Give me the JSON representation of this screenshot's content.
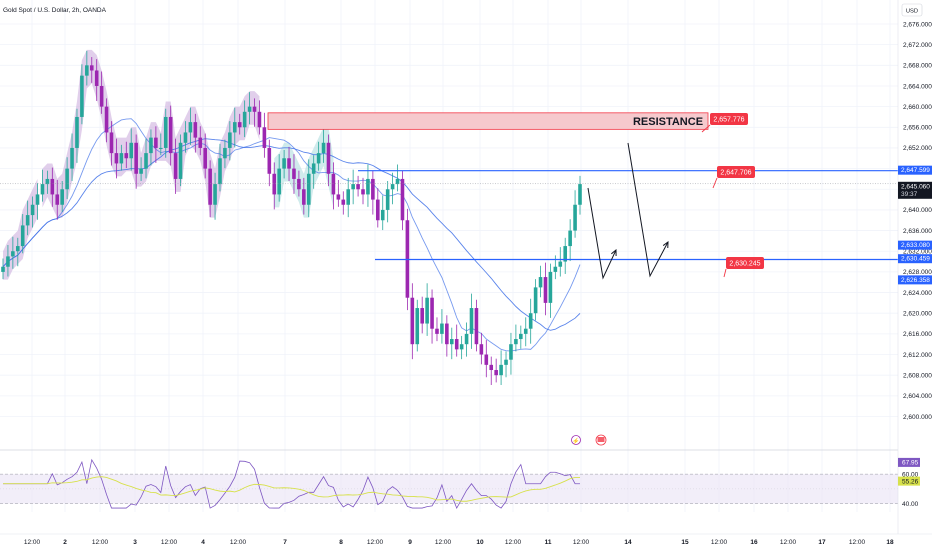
{
  "header": {
    "symbol_title": "Gold Spot / U.S. Dollar, 2h, OANDA",
    "currency_label": "USD"
  },
  "chart_data": {
    "type": "candlestick",
    "title": "Gold Spot / U.S. Dollar, 2h, OANDA",
    "y_axis": {
      "unit": "USD",
      "ylim": [
        2597.5,
        2680.5
      ],
      "ticks": [
        "2,600.000",
        "2,604.000",
        "2,608.000",
        "2,612.000",
        "2,616.000",
        "2,620.000",
        "2,624.000",
        "2,628.000",
        "2,632.000",
        "2,636.000",
        "2,640.000",
        "2,644.000",
        "2,648.000",
        "2,652.000",
        "2,656.000",
        "2,660.000",
        "2,664.000",
        "2,668.000",
        "2,672.000",
        "2,676.000"
      ]
    },
    "x_axis": {
      "ticks": [
        "12:00",
        "2",
        "12:00",
        "3",
        "12:00",
        "4",
        "12:00",
        "7",
        "8",
        "12:00",
        "9",
        "12:00",
        "10",
        "12:00",
        "11",
        "12:00",
        "14",
        "15",
        "12:00",
        "16",
        "12:00",
        "17",
        "12:00",
        "18"
      ]
    },
    "price_labels": [
      {
        "value": "2,647.599",
        "color": "#2962ff"
      },
      {
        "value": "2,645.060",
        "sub": "39:37",
        "color": "#131722"
      },
      {
        "value": "2,633.080",
        "color": "#2962ff"
      },
      {
        "value": "2,630.459",
        "color": "#2962ff"
      },
      {
        "value": "2,626.358",
        "color": "#2962ff"
      },
      {
        "value": "67.95",
        "color": "#7e57c2"
      },
      {
        "value": "60.00",
        "color": "#131722"
      },
      {
        "value": "55.26",
        "color": "#d7e14b"
      },
      {
        "value": "40.00",
        "color": "#131722"
      }
    ],
    "annotations": [
      {
        "text": "RESISTANCE",
        "type": "zone",
        "from": 2655.6,
        "to": 2658.8
      },
      {
        "text": "2,657.776",
        "type": "callout",
        "color": "#f23645"
      },
      {
        "text": "2,647.706",
        "type": "callout",
        "color": "#f23645"
      },
      {
        "text": "2,630.245",
        "type": "callout",
        "color": "#f23645"
      }
    ],
    "levels": [
      {
        "name": "upper line",
        "value": 2647.6,
        "color": "#2962ff"
      },
      {
        "name": "lower line",
        "value": 2630.4,
        "color": "#2962ff"
      }
    ],
    "series": [
      {
        "values": [
          2629,
          2631,
          2632,
          2633,
          2637,
          2639,
          2641,
          2643,
          2645,
          2646,
          2643,
          2641,
          2644,
          2648,
          2652,
          2658,
          2666,
          2668,
          2667,
          2664,
          2660,
          2655,
          2651,
          2649,
          2651,
          2650,
          2653,
          2647,
          2648,
          2651,
          2654,
          2652,
          2652,
          2658,
          2651,
          2646,
          2653,
          2655,
          2657,
          2654,
          2652,
          2648,
          2641,
          2645,
          2650,
          2652,
          2655,
          2657,
          2656,
          2659,
          2660,
          2659,
          2656,
          2652,
          2647,
          2643,
          2648,
          2650,
          2648,
          2646,
          2644,
          2641,
          2647,
          2649,
          2651,
          2653,
          2647,
          2643,
          2642,
          2641,
          2644,
          2645,
          2644,
          2643,
          2646,
          2642,
          2638,
          2640,
          2644,
          2645,
          2646,
          2638,
          2623,
          2614,
          2621,
          2618,
          2623,
          2617,
          2616,
          2618,
          2614,
          2615,
          2613,
          2614,
          2616,
          2621,
          2614,
          2612,
          2610,
          2609,
          2608,
          2610,
          2611,
          2614,
          2615,
          2616,
          2617,
          2620,
          2625,
          2627,
          2622,
          2628,
          2629,
          2630,
          2633,
          2636,
          2641,
          2645
        ]
      }
    ],
    "rsi": {
      "rsi_label": "67.95",
      "ma_label": "55.26",
      "band": [
        40,
        60
      ]
    }
  }
}
